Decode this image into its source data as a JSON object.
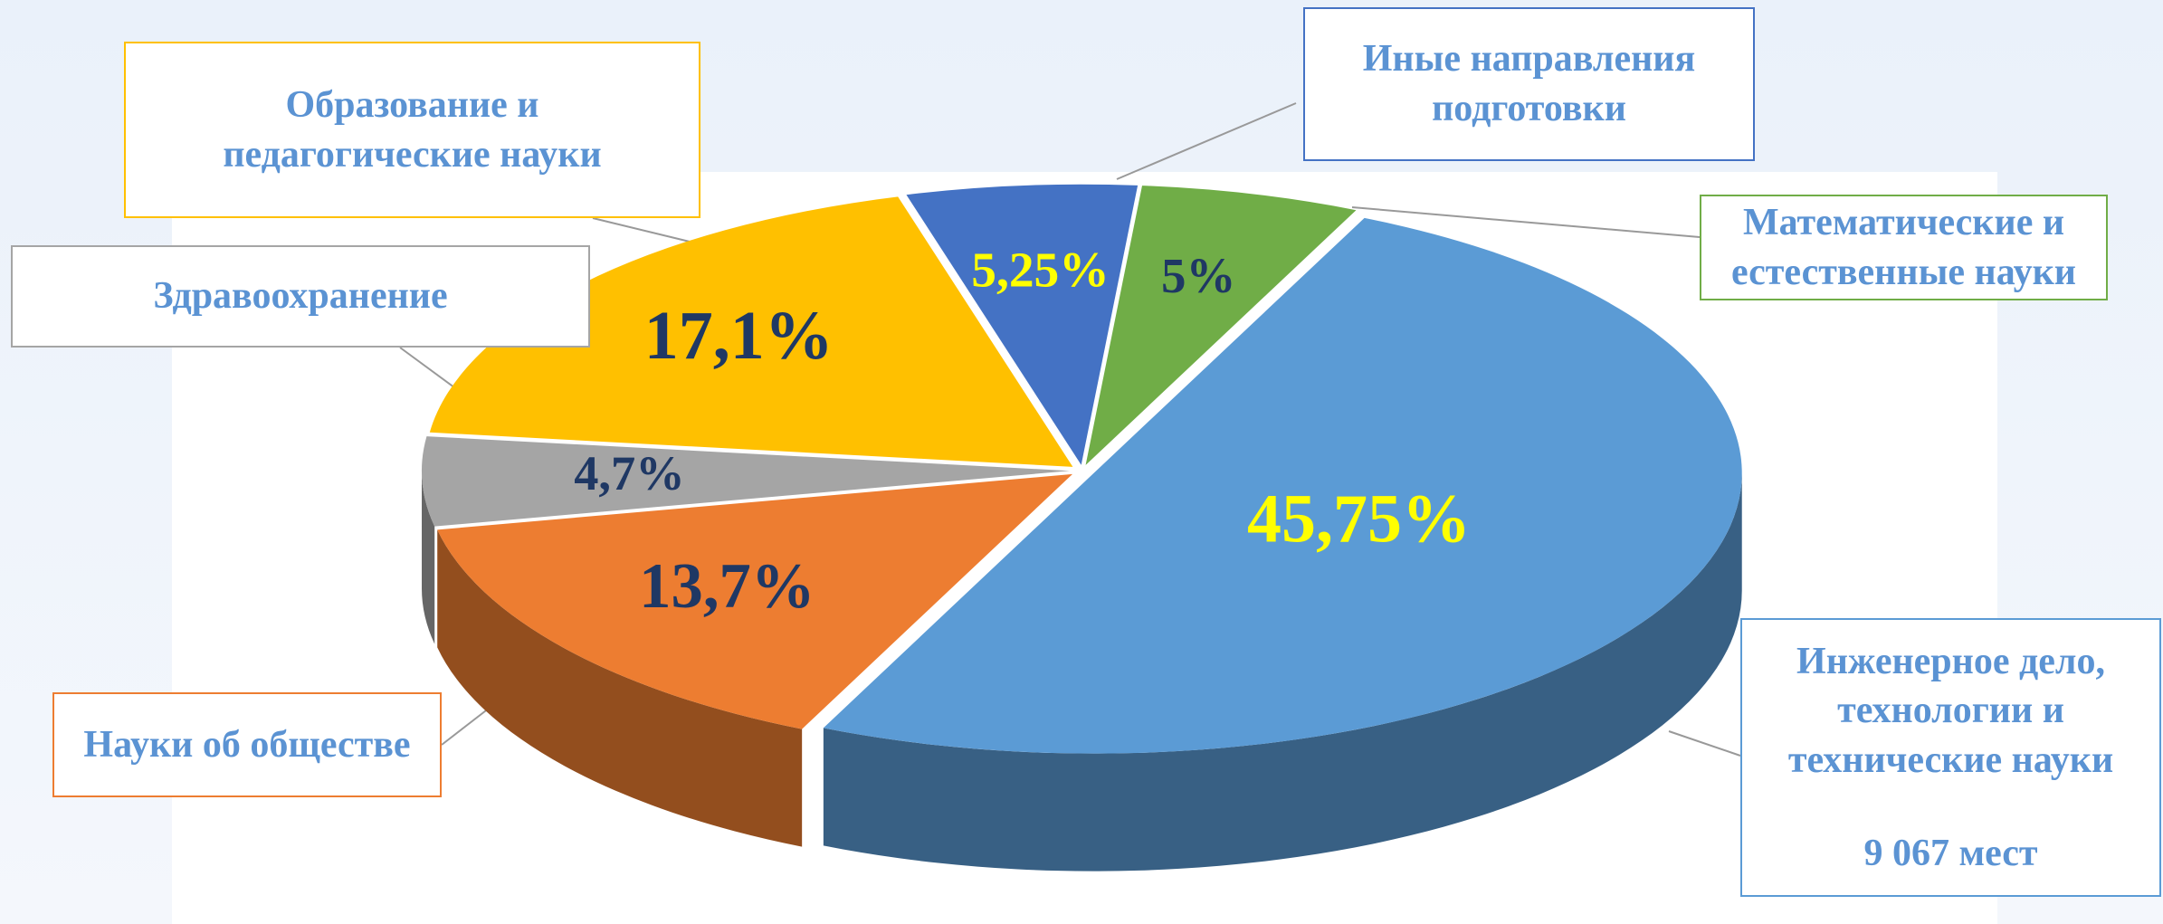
{
  "chart_data": {
    "type": "pie",
    "categories": [
      "Математические  и естественные науки",
      "Инженерное дело, технологии и технические науки",
      "Науки об обществе",
      "Здравоохранение",
      "Образование и педагогические науки",
      "Иные направления подготовки"
    ],
    "values": [
      5,
      45.75,
      13.7,
      4.7,
      17.1,
      5.25
    ],
    "value_labels": [
      "5%",
      "45,75%",
      "13,7%",
      "4,7%",
      "17,1%",
      "5,25%"
    ],
    "colors": [
      "#70ad47",
      "#5b9bd5",
      "#ed7d31",
      "#a5a5a5",
      "#ffc000",
      "#4472c4"
    ],
    "label_colors": [
      "#1f3864",
      "#ffff00",
      "#1f3864",
      "#1f3864",
      "#1f3864",
      "#ffff00"
    ],
    "note": "9 067 мест"
  }
}
